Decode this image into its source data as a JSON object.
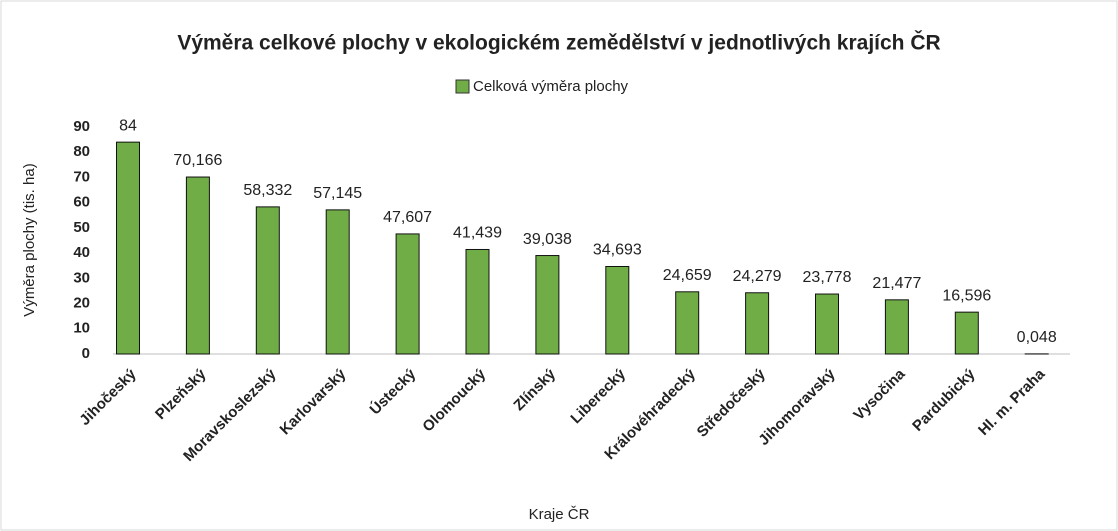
{
  "chart_data": {
    "type": "bar",
    "title": "Výměra celkové plochy v ekologickém zemědělství v jednotlivých krajích ČR",
    "x_label": "Kraje ČR",
    "y_label": "Výměra plochy (tis. ha)",
    "categories": [
      "Jihočeský",
      "Plzeňský",
      "Moravskoslezský",
      "Karlovarský",
      "Ústecký",
      "Olomoucký",
      "Zlínský",
      "Liberecký",
      "Královéhradecký",
      "Středočeský",
      "Jihomoravský",
      "Vysočina",
      "Pardubický",
      "Hl. m. Praha"
    ],
    "series": [
      {
        "name": "Celková výměra plochy",
        "color": "#70ad47",
        "values": [
          84,
          70.166,
          58.332,
          57.145,
          47.607,
          41.439,
          39.038,
          34.693,
          24.659,
          24.279,
          23.778,
          21.477,
          16.596,
          0.048
        ],
        "value_labels": [
          "84",
          "70,166",
          "58,332",
          "57,145",
          "47,607",
          "41,439",
          "39,038",
          "34,693",
          "24,659",
          "24,279",
          "23,778",
          "21,477",
          "16,596",
          "0,048"
        ]
      }
    ],
    "ylim": [
      0,
      90
    ],
    "yticks": [
      0,
      10,
      20,
      30,
      40,
      50,
      60,
      70,
      80,
      90
    ],
    "grid": false,
    "legend": "top"
  }
}
